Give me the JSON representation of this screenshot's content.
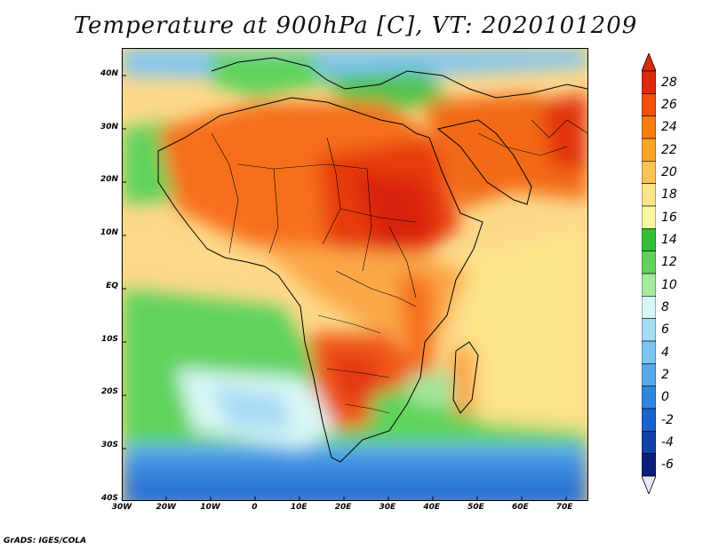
{
  "title": "Temperature at 900hPa [C], VT: 2020101209",
  "credit": "GrADS: IGES/COLA",
  "lat_labels": [
    "40N",
    "30N",
    "20N",
    "10N",
    "EQ",
    "10S",
    "20S",
    "30S",
    "40S"
  ],
  "lon_labels": [
    "30W",
    "20W",
    "10W",
    "0",
    "10E",
    "20E",
    "30E",
    "40E",
    "50E",
    "60E",
    "70E"
  ],
  "colorbar": {
    "labels": [
      "28",
      "26",
      "24",
      "22",
      "20",
      "18",
      "16",
      "14",
      "12",
      "10",
      "8",
      "6",
      "4",
      "2",
      "0",
      "-2",
      "-4",
      "-6"
    ],
    "colors": [
      "#dd2a0e",
      "#f2510c",
      "#f77d12",
      "#fba42a",
      "#fdc255",
      "#fde38a",
      "#f6f7a0",
      "#33c038",
      "#5fd35c",
      "#a4eb9c",
      "#d8f7f4",
      "#a7dcf5",
      "#7ec4f3",
      "#58a9ec",
      "#2e86e0",
      "#1b63cc",
      "#1042aa",
      "#0a1f7a"
    ],
    "units": "C"
  },
  "map_data": {
    "variable": "Temperature",
    "level": "900hPa",
    "valid_time": "2020101209",
    "lon_range": [
      -30,
      75
    ],
    "lat_range": [
      -40,
      45
    ]
  }
}
